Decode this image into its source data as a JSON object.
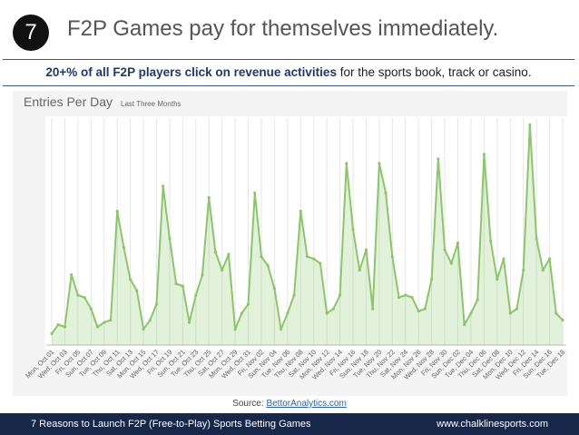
{
  "header": {
    "number": "7",
    "title": "F2P Games pay for themselves immediately."
  },
  "subtitle": {
    "bold": "20+% of all F2P players click on revenue activities",
    "rest": "for the sports book, track or casino."
  },
  "chart_data": {
    "type": "line",
    "title": "Entries Per Day",
    "subtitle": "Last Three Months",
    "categories": [
      "Mon, Oct 01",
      null,
      "Wed, Oct 03",
      null,
      "Fri, Oct 05",
      null,
      "Sun, Oct 07",
      null,
      "Tue, Oct 09",
      null,
      "Thu, Oct 11",
      null,
      "Sat, Oct 13",
      null,
      "Mon, Oct 15",
      null,
      "Wed, Oct 17",
      null,
      "Fri, Oct 19",
      null,
      "Sun, Oct 21",
      null,
      "Tue, Oct 23",
      null,
      "Thu, Oct 25",
      null,
      "Sat, Oct 27",
      null,
      "Mon, Oct 29",
      null,
      "Wed, Oct 31",
      null,
      "Fri, Nov 02",
      null,
      "Sun, Nov 04",
      null,
      "Tue, Nov 06",
      null,
      "Thu, Nov 08",
      null,
      "Sat, Nov 10",
      null,
      "Mon, Nov 12",
      null,
      "Wed, Nov 14",
      null,
      "Fri, Nov 16",
      null,
      "Sun, Nov 18",
      null,
      "Tue, Nov 20",
      null,
      "Thu, Nov 22",
      null,
      "Sat, Nov 24",
      null,
      "Mon, Nov 26",
      null,
      "Wed, Nov 28",
      null,
      "Fri, Nov 30",
      null,
      "Sun, Dec 02",
      null,
      "Tue, Dec 04",
      null,
      "Thu, Dec 06",
      null,
      "Sat, Dec 08",
      null,
      "Mon, Dec 10",
      null,
      "Wed, Dec 12",
      null,
      "Fri, Dec 14",
      null,
      "Sun, Dec 16",
      null,
      "Tue, Dec 18"
    ],
    "values": [
      5,
      9,
      8,
      31,
      22,
      21,
      16,
      8,
      10,
      11,
      59,
      43,
      29,
      24,
      7,
      11,
      18,
      70,
      47,
      27,
      26,
      10,
      22,
      31,
      65,
      41,
      33,
      40,
      7,
      14,
      18,
      67,
      39,
      35,
      25,
      7,
      14,
      22,
      59,
      39,
      38,
      36,
      14,
      16,
      22,
      80,
      51,
      33,
      42,
      16,
      80,
      67,
      39,
      21,
      22,
      21,
      15,
      16,
      29,
      82,
      42,
      36,
      45,
      9,
      14,
      20,
      84,
      46,
      29,
      38,
      14,
      16,
      33,
      97,
      47,
      33,
      38,
      14,
      11
    ],
    "color": "#8cc66a",
    "ylim": [
      0,
      100
    ]
  },
  "source": {
    "label": "Source:",
    "link": "BettorAnalytics.com"
  },
  "footer": {
    "left": "7 Reasons to Launch F2P (Free-to-Play) Sports Betting Games",
    "right": "www.chalklinesports.com"
  }
}
